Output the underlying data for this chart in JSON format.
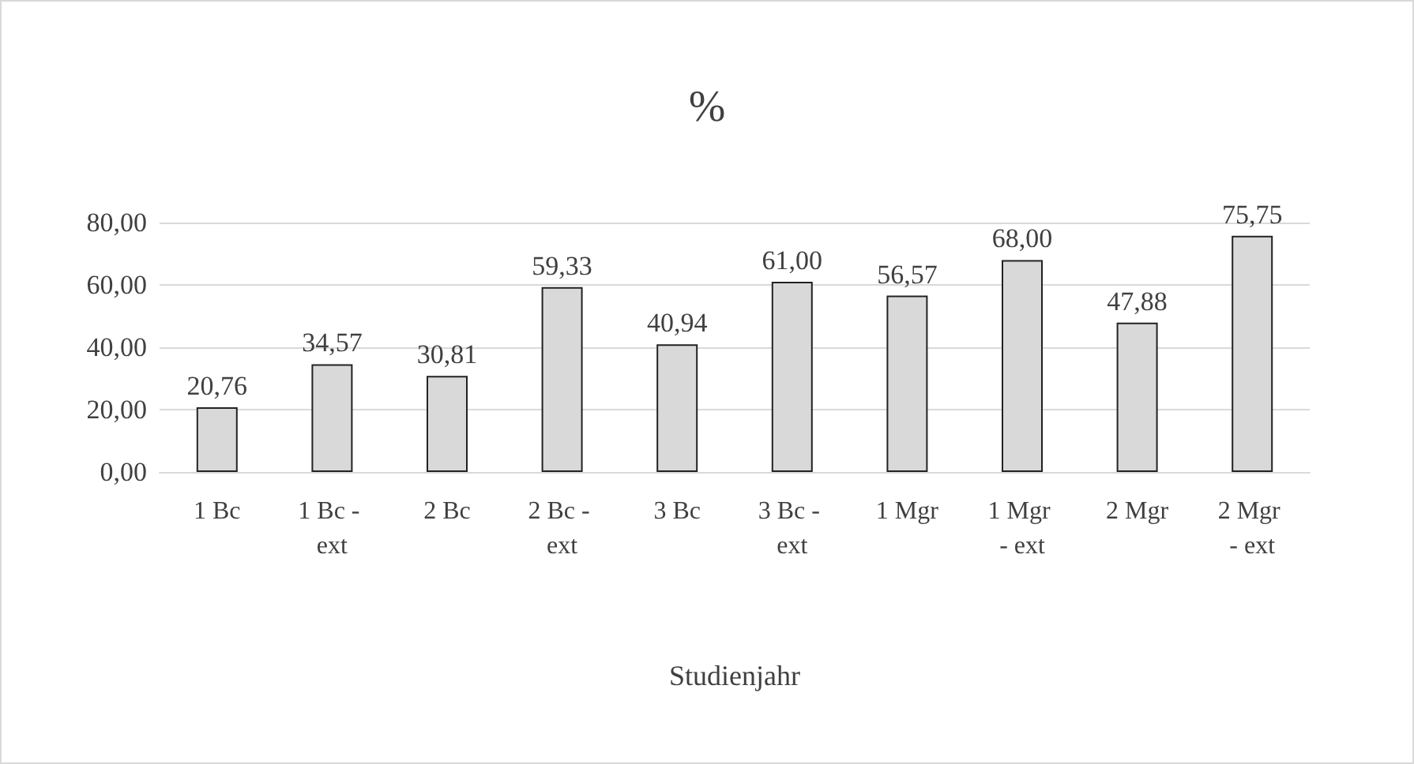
{
  "chart_data": {
    "type": "bar",
    "title": "%",
    "xlabel": "Studienjahr",
    "categories": [
      "1 Bc",
      "1 Bc - ext",
      "2 Bc",
      "2 Bc - ext",
      "3 Bc",
      "3 Bc - ext",
      "1 Mgr",
      "1 Mgr - ext",
      "2 Mgr",
      "2 Mgr - ext"
    ],
    "values": [
      20.76,
      34.57,
      30.81,
      59.33,
      40.94,
      61.0,
      56.57,
      68.0,
      47.88,
      75.75
    ],
    "value_labels": [
      "20,76",
      "34,57",
      "30,81",
      "59,33",
      "40,94",
      "61,00",
      "56,57",
      "68,00",
      "47,88",
      "75,75"
    ],
    "color": "#d9d9d9",
    "ylim": [
      0,
      80
    ],
    "yticks": [
      {
        "value": 0,
        "label": "0,00"
      },
      {
        "value": 20,
        "label": "20,00"
      },
      {
        "value": 40,
        "label": "40,00"
      },
      {
        "value": 60,
        "label": "60,00"
      },
      {
        "value": 80,
        "label": "80,00"
      }
    ],
    "grid": "y"
  }
}
